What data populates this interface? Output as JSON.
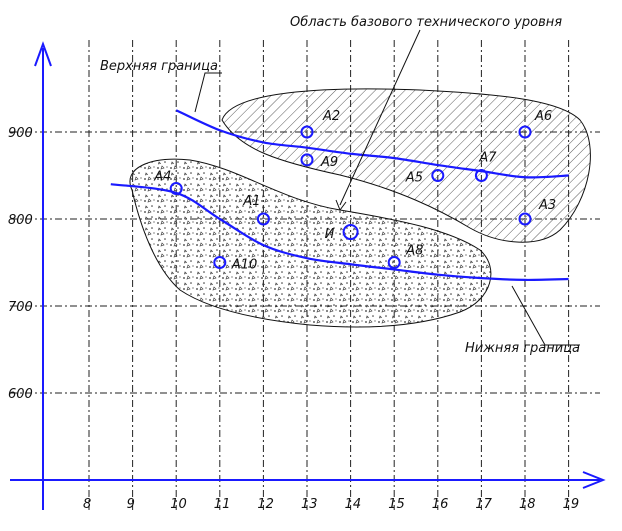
{
  "chart_data": {
    "type": "scatter",
    "title": "",
    "xlabel": "",
    "ylabel": "",
    "x_ticks": [
      "8",
      "9",
      "10",
      "11",
      "12",
      "13",
      "14",
      "15",
      "16",
      "17",
      "18",
      "19"
    ],
    "y_ticks": [
      "600",
      "700",
      "800",
      "900"
    ],
    "xlim": [
      7,
      19.5
    ],
    "ylim": [
      500,
      1000
    ],
    "grid": true,
    "points": [
      {
        "label": "А1",
        "x": 12,
        "y": 800
      },
      {
        "label": "А2",
        "x": 13,
        "y": 900
      },
      {
        "label": "А3",
        "x": 18,
        "y": 800
      },
      {
        "label": "А4",
        "x": 10,
        "y": 835
      },
      {
        "label": "А5",
        "x": 16,
        "y": 850
      },
      {
        "label": "А6",
        "x": 18,
        "y": 900
      },
      {
        "label": "А7",
        "x": 17,
        "y": 850
      },
      {
        "label": "А8",
        "x": 15,
        "y": 750
      },
      {
        "label": "А9",
        "x": 13,
        "y": 868
      },
      {
        "label": "А10",
        "x": 11,
        "y": 750
      },
      {
        "label": "И",
        "x": 14,
        "y": 785
      }
    ],
    "upper_boundary": {
      "name": "Верхняя граница",
      "x": [
        10,
        11,
        12,
        13,
        14,
        15,
        16,
        17,
        18,
        19
      ],
      "y": [
        925,
        902,
        888,
        882,
        875,
        870,
        862,
        855,
        848,
        850
      ]
    },
    "lower_boundary": {
      "name": "Нижняя граница",
      "x": [
        8.5,
        10,
        11,
        12,
        13,
        14,
        15,
        16,
        17,
        18,
        19
      ],
      "y": [
        840,
        830,
        800,
        770,
        755,
        748,
        742,
        736,
        732,
        730,
        731
      ]
    },
    "regions": [
      {
        "name": "Область базового технического уровня"
      }
    ],
    "annotations": [
      "Область базового технического уровня",
      "Верхняя граница",
      "Нижняя граница"
    ]
  }
}
